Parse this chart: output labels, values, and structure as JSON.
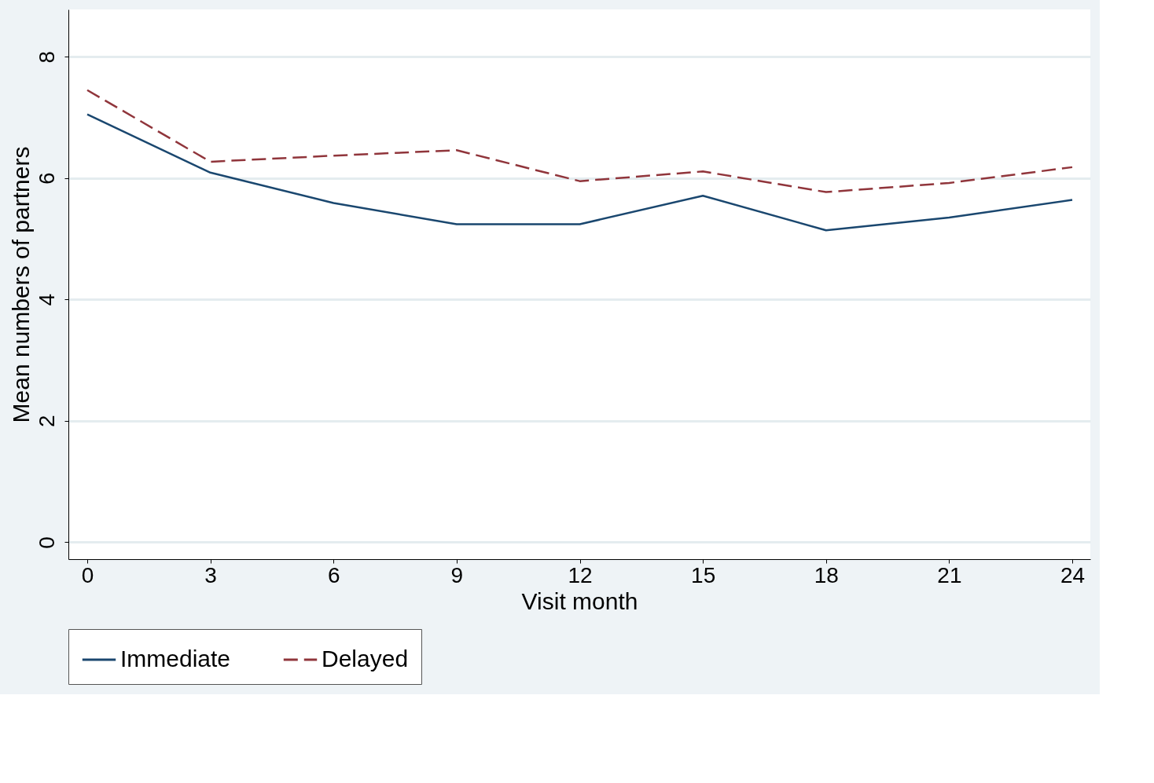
{
  "chart_data": {
    "type": "line",
    "xlabel": "Visit month",
    "ylabel": "Mean numbers of partners",
    "x": [
      0,
      3,
      6,
      9,
      12,
      15,
      18,
      21,
      24
    ],
    "series": [
      {
        "name": "Immediate",
        "color": "#1a476f",
        "line_style": "solid",
        "values": [
          7.05,
          6.09,
          5.59,
          5.24,
          5.24,
          5.71,
          5.14,
          5.35,
          5.64
        ]
      },
      {
        "name": "Delayed",
        "color": "#90353b",
        "line_style": "dashed",
        "values": [
          7.45,
          6.27,
          6.37,
          6.46,
          5.95,
          6.11,
          5.77,
          5.92,
          6.18
        ]
      }
    ],
    "xlim": [
      -0.46,
      24.44
    ],
    "ylim": [
      -0.28,
      8.78
    ],
    "xticks": [
      0,
      3,
      6,
      9,
      12,
      15,
      18,
      21,
      24
    ],
    "yticks": [
      0,
      2,
      4,
      6,
      8
    ],
    "grid": "y",
    "legend": "bottom",
    "marker": "none"
  }
}
